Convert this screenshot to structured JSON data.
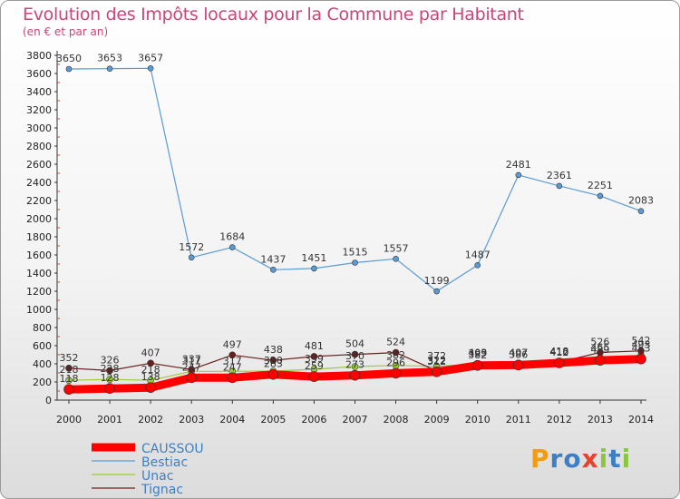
{
  "title": "Evolution des Impôts locaux pour la Commune par Habitant",
  "subtitle": "(en € et par an)",
  "logo": {
    "text": "Proxiti",
    "letters": [
      "P",
      "r",
      "o",
      "x",
      "i",
      "t",
      "i"
    ],
    "colors": [
      "#f39c12",
      "#3d7fc4",
      "#3d7fc4",
      "#e8412c",
      "#8cc63f",
      "#3d7fc4",
      "#8cc63f"
    ]
  },
  "chart_data": {
    "type": "line",
    "x": [
      2000,
      2001,
      2002,
      2003,
      2004,
      2005,
      2006,
      2007,
      2008,
      2009,
      2010,
      2011,
      2012,
      2013,
      2014
    ],
    "ylim": [
      0,
      3800
    ],
    "yticks": [
      0,
      200,
      400,
      600,
      800,
      1000,
      1200,
      1400,
      1600,
      1800,
      2000,
      2200,
      2400,
      2600,
      2800,
      3000,
      3200,
      3400,
      3600,
      3800
    ],
    "grid": false,
    "legend_position": "bottom-left",
    "series": [
      {
        "name": "Bestiac",
        "color": "#5b9bd5",
        "width": 1.2,
        "marker": 3,
        "values": [
          3650,
          3653,
          3657,
          1572,
          1684,
          1437,
          1451,
          1515,
          1557,
          1199,
          1487,
          2481,
          2361,
          2251,
          2083
        ],
        "labels": [
          "3650",
          "3653",
          "3657",
          "1572",
          "1684",
          "1437",
          "1451",
          "1515",
          "1557",
          "1199",
          "1487",
          "2481",
          "2361",
          "2251",
          "2083"
        ]
      },
      {
        "name": "Unac",
        "color": "#9acd32",
        "width": 1.2,
        "marker": 3.5,
        "values": [
          218,
          228,
          218,
          317,
          317,
          320,
          339,
          370,
          382,
          372,
          399,
          407,
          412,
          465,
          493
        ],
        "labels": [
          "218",
          "228",
          "218",
          "317",
          "317",
          "320",
          "339",
          "370",
          "382",
          "372",
          "399",
          "407",
          "412",
          "465",
          "493"
        ]
      },
      {
        "name": "Tignac",
        "color": "#6b1e1e",
        "width": 1.2,
        "marker": 3.5,
        "values": [
          352,
          326,
          407,
          337,
          497,
          438,
          481,
          504,
          524,
          322,
          403,
          407,
          418,
          526,
          542
        ],
        "labels": [
          "352",
          "326",
          "407",
          "337",
          "497",
          "438",
          "481",
          "504",
          "524",
          "322",
          "403",
          "407",
          "418",
          "526",
          "542"
        ]
      },
      {
        "name": "CAUSSOU",
        "color": "#ff0000",
        "width": 9,
        "marker": 5.5,
        "values": [
          118,
          128,
          138,
          247,
          247,
          283,
          259,
          273,
          296,
          312,
          382,
          386,
          410,
          439,
          453
        ],
        "labels": [
          "118",
          "128",
          "138",
          "247",
          "247",
          "283",
          "259",
          "273",
          "296",
          "312",
          "382",
          "386",
          "410",
          "439",
          "453"
        ]
      }
    ],
    "legend_order": [
      "CAUSSOU",
      "Bestiac",
      "Unac",
      "Tignac"
    ]
  }
}
